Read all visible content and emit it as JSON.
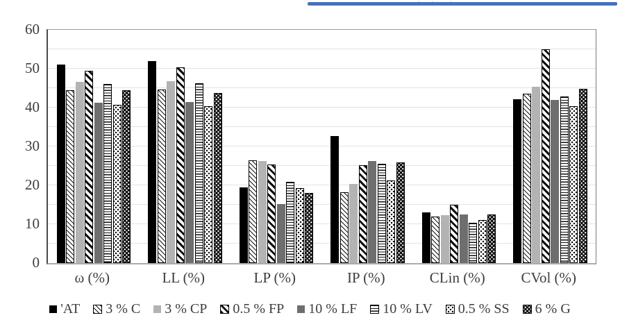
{
  "header": {
    "clipped_caption_text": ", ( % )",
    "underline_color": "#4472C4"
  },
  "colors": {
    "accent_blue": "#4472C4",
    "bar_black": "#000000",
    "bar_light_gray": "#b3b3b3",
    "bar_dark_gray": "#6e6e6e",
    "axis_text": "#3d3d3d",
    "gridline": "#e3e3e3"
  },
  "chart_data": {
    "type": "bar",
    "title": "",
    "xlabel": "",
    "ylabel": "",
    "ylim": [
      0,
      60
    ],
    "yticks": [
      0,
      10,
      20,
      30,
      40,
      50,
      60
    ],
    "grid": "horizontal, minor every 5",
    "legend_position": "bottom",
    "categories": [
      "ω (%)",
      "LL (%)",
      "LP (%)",
      "IP (%)",
      "CLin (%)",
      "CVol (%)"
    ],
    "series": [
      {
        "name": "'AT",
        "pattern": "solid-black",
        "values": [
          51.0,
          52.0,
          19.5,
          32.7,
          13.0,
          42.2
        ]
      },
      {
        "name": "3 % C",
        "pattern": "thin-diagonal-hatch",
        "values": [
          44.4,
          44.6,
          26.5,
          18.2,
          12.0,
          43.6
        ]
      },
      {
        "name": "3 % CP",
        "pattern": "solid-light-gray",
        "values": [
          46.6,
          46.8,
          26.3,
          20.4,
          12.3,
          45.4
        ]
      },
      {
        "name": "0.5 % FP",
        "pattern": "thick-diagonal-stripe",
        "values": [
          49.4,
          50.3,
          25.4,
          25.2,
          15.0,
          55.0
        ]
      },
      {
        "name": "10 % LF",
        "pattern": "solid-dark-gray",
        "values": [
          41.3,
          41.5,
          15.1,
          26.3,
          12.5,
          41.9
        ]
      },
      {
        "name": "10 % LV",
        "pattern": "horizontal-lines",
        "values": [
          46.1,
          46.2,
          20.9,
          25.6,
          10.3,
          42.9
        ]
      },
      {
        "name": "0.5 % SS",
        "pattern": "black-dots-on-white",
        "values": [
          40.8,
          40.4,
          19.3,
          21.2,
          11.0,
          40.3
        ]
      },
      {
        "name": "6 % G",
        "pattern": "white-dots-on-black",
        "values": [
          44.5,
          43.7,
          18.1,
          25.9,
          12.5,
          44.8
        ]
      }
    ]
  }
}
